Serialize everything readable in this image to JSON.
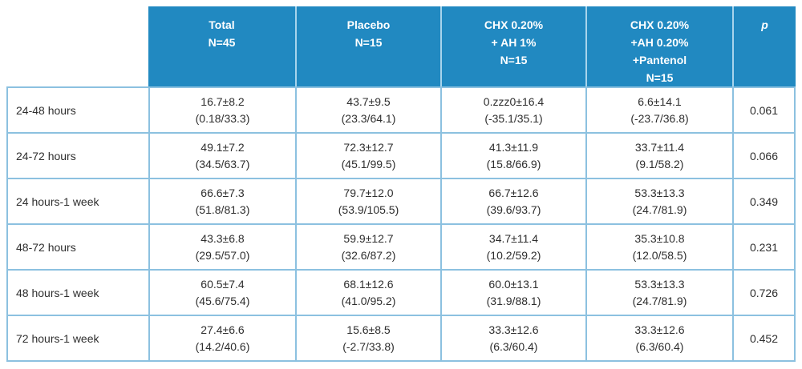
{
  "colors": {
    "header_bg": "#2189c1",
    "header_separator": "#a8d4ec",
    "grid_border": "#8cc1e0",
    "header_text": "#ffffff",
    "body_text": "#2e2e2e"
  },
  "table": {
    "header": {
      "corner": "",
      "cells": [
        {
          "lines": [
            "Total",
            "N=45"
          ]
        },
        {
          "lines": [
            "Placebo",
            "N=15"
          ]
        },
        {
          "lines": [
            "CHX 0.20%",
            "+ AH 1%",
            "N=15"
          ]
        },
        {
          "lines": [
            "CHX 0.20%",
            "+AH 0.20%",
            "+Pantenol",
            "N=15"
          ]
        },
        {
          "lines": [
            "p"
          ]
        }
      ]
    },
    "rows": [
      {
        "label": "24-48 hours",
        "cells": [
          {
            "value": "16.7±8.2",
            "range": "(0.18/33.3)"
          },
          {
            "value": "43.7±9.5",
            "range": "(23.3/64.1)"
          },
          {
            "value": "0.zzz0±16.4",
            "range": "(-35.1/35.1)"
          },
          {
            "value": "6.6±14.1",
            "range": "(-23.7/36.8)"
          }
        ],
        "p": "0.061"
      },
      {
        "label": "24-72 hours",
        "cells": [
          {
            "value": "49.1±7.2",
            "range": "(34.5/63.7)"
          },
          {
            "value": "72.3±12.7",
            "range": "(45.1/99.5)"
          },
          {
            "value": "41.3±11.9",
            "range": "(15.8/66.9)"
          },
          {
            "value": "33.7±11.4",
            "range": "(9.1/58.2)"
          }
        ],
        "p": "0.066"
      },
      {
        "label": "24 hours-1 week",
        "cells": [
          {
            "value": "66.6±7.3",
            "range": "(51.8/81.3)"
          },
          {
            "value": "79.7±12.0",
            "range": "(53.9/105.5)"
          },
          {
            "value": "66.7±12.6",
            "range": "(39.6/93.7)"
          },
          {
            "value": "53.3±13.3",
            "range": "(24.7/81.9)"
          }
        ],
        "p": "0.349"
      },
      {
        "label": "48-72 hours",
        "cells": [
          {
            "value": "43.3±6.8",
            "range": "(29.5/57.0)"
          },
          {
            "value": "59.9±12.7",
            "range": "(32.6/87.2)"
          },
          {
            "value": "34.7±11.4",
            "range": "(10.2/59.2)"
          },
          {
            "value": "35.3±10.8",
            "range": "(12.0/58.5)"
          }
        ],
        "p": "0.231"
      },
      {
        "label": "48 hours-1 week",
        "cells": [
          {
            "value": "60.5±7.4",
            "range": "(45.6/75.4)"
          },
          {
            "value": "68.1±12.6",
            "range": "(41.0/95.2)"
          },
          {
            "value": "60.0±13.1",
            "range": "(31.9/88.1)"
          },
          {
            "value": "53.3±13.3",
            "range": "(24.7/81.9)"
          }
        ],
        "p": "0.726"
      },
      {
        "label": "72 hours-1 week",
        "cells": [
          {
            "value": "27.4±6.6",
            "range": "(14.2/40.6)"
          },
          {
            "value": "15.6±8.5",
            "range": "(-2.7/33.8)"
          },
          {
            "value": "33.3±12.6",
            "range": "(6.3/60.4)"
          },
          {
            "value": "33.3±12.6",
            "range": "(6.3/60.4)"
          }
        ],
        "p": "0.452"
      }
    ]
  }
}
